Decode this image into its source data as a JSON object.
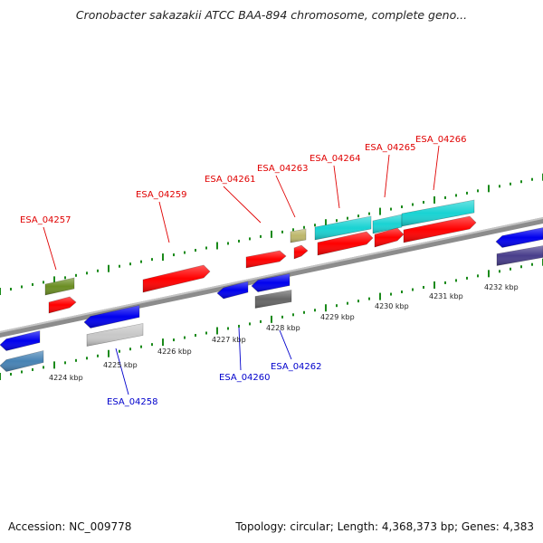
{
  "title": "Cronobacter sakazakii ATCC BAA-894 chromosome, complete geno...",
  "footer": {
    "accession": "Accession: NC_009778",
    "summary": "Topology: circular; Length: 4,368,373 bp; Genes: 4,383"
  },
  "axis_ticks": [
    "4224 kbp",
    "4225 kbp",
    "4226 kbp",
    "4227 kbp",
    "4228 kbp",
    "4229 kbp",
    "4230 kbp",
    "4231 kbp",
    "4232 kbp"
  ],
  "gene_labels_top": [
    "ESA_04257",
    "ESA_04259",
    "ESA_04261",
    "ESA_04263",
    "ESA_04264",
    "ESA_04265",
    "ESA_04266"
  ],
  "gene_labels_bottom": [
    "ESA_04258",
    "ESA_04260",
    "ESA_04262"
  ],
  "colors": {
    "strand_track": "#1a8a1a",
    "backbone": "#888888",
    "label_forward": "#e00000",
    "label_reverse": "#0000cc",
    "red": "#ff0000",
    "blue": "#0000ee",
    "cyan": "#19d3d3",
    "olive": "#6b8e23",
    "khaki": "#bdb76b",
    "grey": "#666666",
    "lightgrey": "#c8c8c8",
    "steelblue": "#4682b4",
    "slateblue": "#483d8b"
  }
}
